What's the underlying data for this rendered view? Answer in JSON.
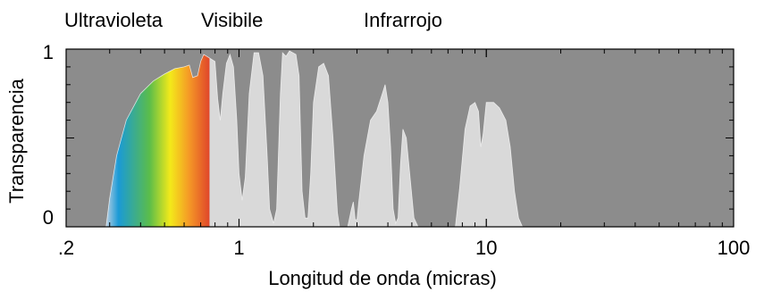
{
  "chart_data": {
    "type": "area",
    "title": "",
    "xlabel": "Longitud de onda (micras)",
    "ylabel": "Transparencia",
    "x_scale": "log",
    "xlim": [
      0.2,
      100
    ],
    "ylim": [
      0,
      1
    ],
    "x_ticks": [
      {
        "value": 0.2,
        "label": ".2"
      },
      {
        "value": 1,
        "label": "1"
      },
      {
        "value": 10,
        "label": "10"
      },
      {
        "value": 100,
        "label": "100"
      }
    ],
    "y_ticks": [
      {
        "value": 0,
        "label": "0"
      },
      {
        "value": 1,
        "label": "1"
      }
    ],
    "region_labels": [
      {
        "label": "Ultravioleta",
        "x": 0.3
      },
      {
        "label": "Visibile",
        "x": 0.55
      },
      {
        "label": "Infrarrojo",
        "x": 3.3
      }
    ],
    "colors": {
      "background": "#8c8c8c",
      "transmission": "#d9d9d9",
      "spectrum": [
        "#b9cfe2",
        "#1a9ad6",
        "#5bbd4a",
        "#f3ea1a",
        "#f59a26",
        "#e0462a"
      ]
    },
    "visible_band": [
      0.4,
      0.76
    ],
    "series": [
      {
        "values": [
          [
            0.29,
            0.0
          ],
          [
            0.3,
            0.16
          ],
          [
            0.32,
            0.4
          ],
          [
            0.35,
            0.6
          ],
          [
            0.4,
            0.75
          ],
          [
            0.45,
            0.82
          ],
          [
            0.5,
            0.86
          ],
          [
            0.55,
            0.89
          ],
          [
            0.6,
            0.9
          ],
          [
            0.63,
            0.91
          ],
          [
            0.65,
            0.84
          ],
          [
            0.68,
            0.85
          ],
          [
            0.7,
            0.93
          ],
          [
            0.72,
            0.97
          ],
          [
            0.74,
            0.96
          ],
          [
            0.76,
            0.95
          ],
          [
            0.8,
            0.93
          ],
          [
            0.82,
            0.72
          ],
          [
            0.84,
            0.6
          ],
          [
            0.86,
            0.75
          ],
          [
            0.89,
            0.92
          ],
          [
            0.92,
            0.97
          ],
          [
            0.95,
            0.9
          ],
          [
            0.98,
            0.6
          ],
          [
            1.0,
            0.3
          ],
          [
            1.03,
            0.15
          ],
          [
            1.06,
            0.28
          ],
          [
            1.1,
            0.75
          ],
          [
            1.15,
            0.98
          ],
          [
            1.2,
            0.98
          ],
          [
            1.25,
            0.85
          ],
          [
            1.3,
            0.4
          ],
          [
            1.33,
            0.1
          ],
          [
            1.38,
            0.02
          ],
          [
            1.42,
            0.1
          ],
          [
            1.47,
            0.75
          ],
          [
            1.5,
            0.98
          ],
          [
            1.55,
            0.96
          ],
          [
            1.6,
            0.99
          ],
          [
            1.7,
            0.97
          ],
          [
            1.75,
            0.85
          ],
          [
            1.8,
            0.2
          ],
          [
            1.85,
            0.05
          ],
          [
            1.9,
            0.05
          ],
          [
            1.95,
            0.3
          ],
          [
            2.0,
            0.7
          ],
          [
            2.1,
            0.9
          ],
          [
            2.2,
            0.92
          ],
          [
            2.3,
            0.85
          ],
          [
            2.4,
            0.5
          ],
          [
            2.5,
            0.08
          ],
          [
            2.55,
            0.0
          ],
          [
            2.75,
            0.0
          ],
          [
            2.85,
            0.1
          ],
          [
            2.9,
            0.14
          ],
          [
            2.95,
            0.04
          ],
          [
            3.0,
            0.04
          ],
          [
            3.05,
            0.14
          ],
          [
            3.2,
            0.4
          ],
          [
            3.4,
            0.6
          ],
          [
            3.6,
            0.65
          ],
          [
            3.8,
            0.75
          ],
          [
            3.9,
            0.8
          ],
          [
            4.0,
            0.7
          ],
          [
            4.1,
            0.45
          ],
          [
            4.2,
            0.1
          ],
          [
            4.3,
            0.02
          ],
          [
            4.4,
            0.05
          ],
          [
            4.5,
            0.35
          ],
          [
            4.6,
            0.55
          ],
          [
            4.75,
            0.5
          ],
          [
            4.9,
            0.3
          ],
          [
            5.1,
            0.05
          ],
          [
            5.3,
            0.0
          ],
          [
            7.5,
            0.0
          ],
          [
            7.8,
            0.22
          ],
          [
            8.2,
            0.55
          ],
          [
            8.6,
            0.68
          ],
          [
            9.0,
            0.7
          ],
          [
            9.3,
            0.65
          ],
          [
            9.5,
            0.45
          ],
          [
            9.7,
            0.52
          ],
          [
            10.0,
            0.7
          ],
          [
            10.3,
            0.7
          ],
          [
            10.7,
            0.7
          ],
          [
            11.3,
            0.67
          ],
          [
            12.0,
            0.6
          ],
          [
            12.5,
            0.45
          ],
          [
            13.0,
            0.2
          ],
          [
            13.5,
            0.05
          ],
          [
            14.0,
            0.0
          ]
        ]
      }
    ]
  }
}
